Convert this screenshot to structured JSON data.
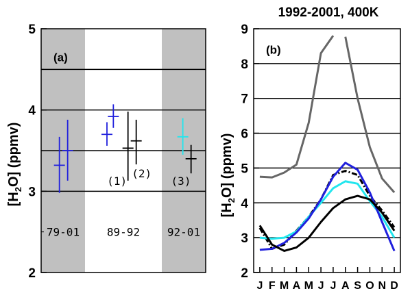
{
  "chart_data": [
    {
      "type": "scatter",
      "panel_label": "(a)",
      "title": "",
      "ylabel_parts": [
        "[H",
        "2",
        "O]  (ppmv)"
      ],
      "ylim": [
        2,
        5
      ],
      "yticks": [
        2,
        3,
        4,
        5
      ],
      "grid_y": [
        3,
        3.5,
        4,
        4.5
      ],
      "xlim": [
        0,
        9
      ],
      "shaded_ranges": [
        [
          0,
          2.4
        ],
        [
          6.6,
          9
        ]
      ],
      "period_labels": [
        {
          "text": "79-01",
          "x": 1.2
        },
        {
          "text": "89-92",
          "x": 4.5
        },
        {
          "text": "92-01",
          "x": 7.8
        }
      ],
      "number_labels": [
        {
          "text": "(1)",
          "x": 4.15,
          "y": 3.13
        },
        {
          "text": "(2)",
          "x": 5.5,
          "y": 3.22
        },
        {
          "text": "(3)",
          "x": 7.65,
          "y": 3.13
        }
      ],
      "colors": {
        "blue": "#2020dd",
        "black": "#000000",
        "cyan": "#22e6ee"
      },
      "points": [
        {
          "x": 1.0,
          "y": 3.32,
          "y_low": 2.98,
          "y_high": 3.67,
          "color": "#2020dd"
        },
        {
          "x": 1.45,
          "y": 3.5,
          "y_low": 3.13,
          "y_high": 3.88,
          "color": "#2020dd"
        },
        {
          "x": 3.6,
          "y": 3.7,
          "y_low": 3.56,
          "y_high": 3.85,
          "color": "#2020dd"
        },
        {
          "x": 3.95,
          "y": 3.92,
          "y_low": 3.78,
          "y_high": 4.07,
          "color": "#2020dd"
        },
        {
          "x": 4.75,
          "y": 3.53,
          "y_low": 3.13,
          "y_high": 3.98,
          "color": "#000000"
        },
        {
          "x": 5.2,
          "y": 3.62,
          "y_low": 3.33,
          "y_high": 3.88,
          "color": "#000000"
        },
        {
          "x": 7.75,
          "y": 3.67,
          "y_low": 3.45,
          "y_high": 3.9,
          "color": "#22e6ee"
        },
        {
          "x": 8.2,
          "y": 3.4,
          "y_low": 3.22,
          "y_high": 3.57,
          "color": "#000000"
        }
      ]
    },
    {
      "type": "line",
      "panel_label": "(b)",
      "title": "1992-2001, 400K",
      "ylabel_parts": [
        "[H",
        "2",
        "O]  (ppmv)"
      ],
      "ylim": [
        2,
        9
      ],
      "yticks": [
        2,
        3,
        4,
        5,
        6,
        7,
        8,
        9
      ],
      "grid_y": [
        3,
        4,
        5,
        6,
        7,
        8
      ],
      "xlim": [
        0.5,
        12.5
      ],
      "categories": [
        "J",
        "F",
        "M",
        "A",
        "M",
        "J",
        "J",
        "A",
        "S",
        "O",
        "N",
        "D"
      ],
      "series": [
        {
          "color": "#666666",
          "style": "solid",
          "values": [
            4.75,
            4.73,
            4.87,
            5.1,
            6.3,
            8.3,
            8.8,
            8.77,
            7.0,
            5.6,
            4.7,
            4.3
          ],
          "gaps_after": [
            7
          ]
        },
        {
          "color": "#000000",
          "style": "dashdot",
          "values": [
            3.28,
            2.68,
            2.8,
            3.2,
            3.6,
            4.1,
            4.8,
            4.92,
            4.8,
            4.2,
            3.78,
            3.3
          ],
          "gaps_after": []
        },
        {
          "color": "#22e6ee",
          "style": "solid",
          "values": [
            3.0,
            2.97,
            3.0,
            3.18,
            3.6,
            4.0,
            4.42,
            4.62,
            4.55,
            4.05,
            3.6,
            3.0
          ],
          "gaps_after": []
        },
        {
          "color": "#2020dd",
          "style": "solid",
          "values": [
            2.65,
            2.68,
            2.85,
            3.15,
            3.55,
            4.1,
            4.75,
            5.15,
            4.95,
            4.3,
            3.45,
            2.62
          ],
          "gaps_after": []
        },
        {
          "color": "#000000",
          "style": "solid",
          "values": [
            3.35,
            2.8,
            2.62,
            2.72,
            3.0,
            3.45,
            3.85,
            4.1,
            4.2,
            4.1,
            3.72,
            3.2
          ],
          "gaps_after": []
        }
      ]
    }
  ]
}
